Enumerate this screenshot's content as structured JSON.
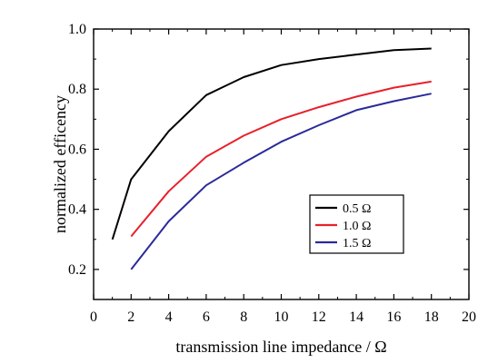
{
  "chart_data": {
    "type": "line",
    "title": "",
    "xlabel": "transmission line impedance / Ω",
    "ylabel": "normalized efficency",
    "xlim": [
      0,
      20
    ],
    "ylim": [
      0.1,
      1.0
    ],
    "x_ticks": [
      0,
      2,
      4,
      6,
      8,
      10,
      12,
      14,
      16,
      18,
      20
    ],
    "x_tick_labels": [
      "0",
      "2",
      "4",
      "6",
      "8",
      "10",
      "12",
      "14",
      "16",
      "18",
      "20"
    ],
    "y_ticks": [
      0.2,
      0.4,
      0.6,
      0.8,
      1.0
    ],
    "y_tick_labels": [
      "0.2",
      "0.4",
      "0.6",
      "0.8",
      "1.0"
    ],
    "grid": false,
    "legend_position": "center-right",
    "series": [
      {
        "name": "0.5 Ω",
        "color": "#000000",
        "x": [
          1,
          2,
          4,
          6,
          8,
          10,
          12,
          14,
          16,
          18
        ],
        "y": [
          0.3,
          0.5,
          0.66,
          0.78,
          0.84,
          0.88,
          0.9,
          0.915,
          0.93,
          0.935
        ]
      },
      {
        "name": "1.0 Ω",
        "color": "#e8202a",
        "x": [
          2,
          4,
          6,
          8,
          10,
          12,
          14,
          16,
          18
        ],
        "y": [
          0.31,
          0.46,
          0.575,
          0.645,
          0.7,
          0.74,
          0.775,
          0.805,
          0.825
        ]
      },
      {
        "name": "1.5 Ω",
        "color": "#2a2a9a",
        "x": [
          2,
          4,
          6,
          8,
          10,
          12,
          14,
          16,
          18
        ],
        "y": [
          0.2,
          0.36,
          0.48,
          0.555,
          0.625,
          0.68,
          0.73,
          0.76,
          0.785
        ]
      }
    ]
  }
}
